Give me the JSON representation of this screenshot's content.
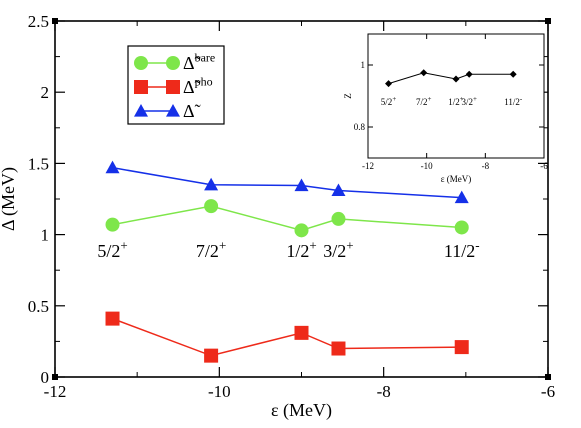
{
  "chart_data": [
    {
      "type": "line",
      "xlabel": "ε (MeV)",
      "ylabel": "Δ (MeV)",
      "xlim": [
        -12,
        -6
      ],
      "ylim": [
        0,
        2.5
      ],
      "xticks": [
        -12,
        -10,
        -8,
        -6
      ],
      "xtick_labels": [
        "-12",
        "-10",
        "-8",
        "-6"
      ],
      "yticks": [
        0,
        0.5,
        1,
        1.5,
        2,
        2.5
      ],
      "ytick_labels": [
        "0",
        "0.5",
        "1",
        "1.5",
        "2",
        "2.5"
      ],
      "grid": false,
      "legend_position": "top-left",
      "x": [
        -11.3,
        -10.1,
        -9.0,
        -8.55,
        -7.05
      ],
      "level_labels": [
        {
          "main": "5/2",
          "sup": "+"
        },
        {
          "main": "7/2",
          "sup": "+"
        },
        {
          "main": "1/2",
          "sup": "+"
        },
        {
          "main": "3/2",
          "sup": "+"
        },
        {
          "main": "11/2",
          "sup": "-"
        }
      ],
      "series": [
        {
          "name_main": "Δ̃",
          "name_sup": "bare",
          "marker": "circle",
          "color": "#7ee64a",
          "line_color": "#7ee64a",
          "values": [
            1.07,
            1.2,
            1.03,
            1.11,
            1.05
          ]
        },
        {
          "name_main": "Δ̃",
          "name_sup": "pho",
          "marker": "square",
          "color": "#ee2a1a",
          "line_color": "#ee2a1a",
          "values": [
            0.41,
            0.15,
            0.31,
            0.2,
            0.21
          ]
        },
        {
          "name_main": "Δ̃",
          "name_sup": "",
          "marker": "triangle",
          "color": "#1530e8",
          "line_color": "#1530e8",
          "values": [
            1.47,
            1.35,
            1.345,
            1.31,
            1.26
          ]
        }
      ]
    },
    {
      "type": "line",
      "xlabel": "ε (MeV)",
      "ylabel": "Z",
      "xlim": [
        -12,
        -6
      ],
      "ylim": [
        0.7,
        1.1
      ],
      "xticks": [
        -12,
        -10,
        -8,
        -6
      ],
      "xtick_labels": [
        "-12",
        "-10",
        "-8",
        "-6"
      ],
      "yticks": [
        0.8,
        1.0
      ],
      "ytick_labels": [
        "0.8",
        "1"
      ],
      "grid": false,
      "x": [
        -11.3,
        -10.1,
        -9.0,
        -8.55,
        -7.05
      ],
      "level_labels": [
        {
          "main": "5/2",
          "sup": "+"
        },
        {
          "main": "7/2",
          "sup": "+"
        },
        {
          "main": "1/2",
          "sup": "+"
        },
        {
          "main": "3/2",
          "sup": "+"
        },
        {
          "main": "11/2",
          "sup": "-"
        }
      ],
      "series": [
        {
          "marker": "diamond",
          "color": "#000000",
          "values": [
            0.94,
            0.975,
            0.955,
            0.97,
            0.97
          ]
        }
      ]
    }
  ]
}
